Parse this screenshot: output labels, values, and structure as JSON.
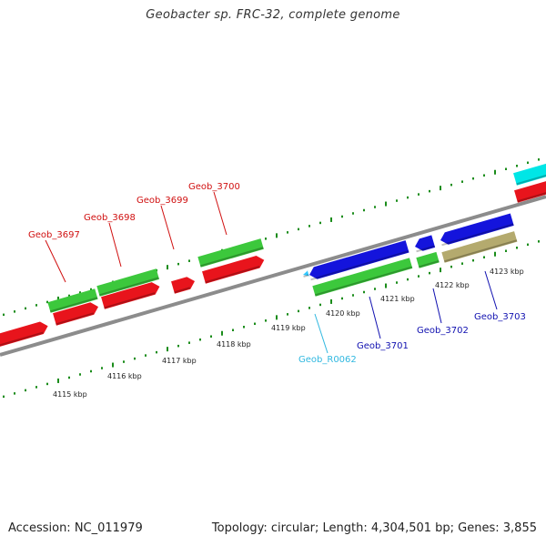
{
  "title": "Geobacter sp. FRC-32, complete genome",
  "accession": "Accession: NC_011979",
  "summary": "Topology: circular; Length: 4,304,501 bp; Genes: 3,855",
  "colors": {
    "forward_gene": "#e8141c",
    "cds_green": "#3cc83c",
    "reverse_gene": "#1414dc",
    "other_gene": "#b4aa6e",
    "rna": "#32c8ff",
    "top_strip": "#00e6e6",
    "backbone": "#8c8c8c",
    "ticks": "#1a8c1a",
    "label_red": "#d01010",
    "label_blue": "#1010b0",
    "label_cyan": "#30b8e0"
  },
  "kbp_labels": [
    "4115 kbp",
    "4116 kbp",
    "4117 kbp",
    "4118 kbp",
    "4119 kbp",
    "4120 kbp",
    "4121 kbp",
    "4122 kbp",
    "4123 kbp"
  ],
  "gene_labels": [
    {
      "text": "Geob_3697",
      "color": "label_red"
    },
    {
      "text": "Geob_3698",
      "color": "label_red"
    },
    {
      "text": "Geob_3699",
      "color": "label_red"
    },
    {
      "text": "Geob_3700",
      "color": "label_red"
    },
    {
      "text": "Geob_R0062",
      "color": "label_cyan"
    },
    {
      "text": "Geob_3701",
      "color": "label_blue"
    },
    {
      "text": "Geob_3702",
      "color": "label_blue"
    },
    {
      "text": "Geob_3703",
      "color": "label_blue"
    }
  ]
}
